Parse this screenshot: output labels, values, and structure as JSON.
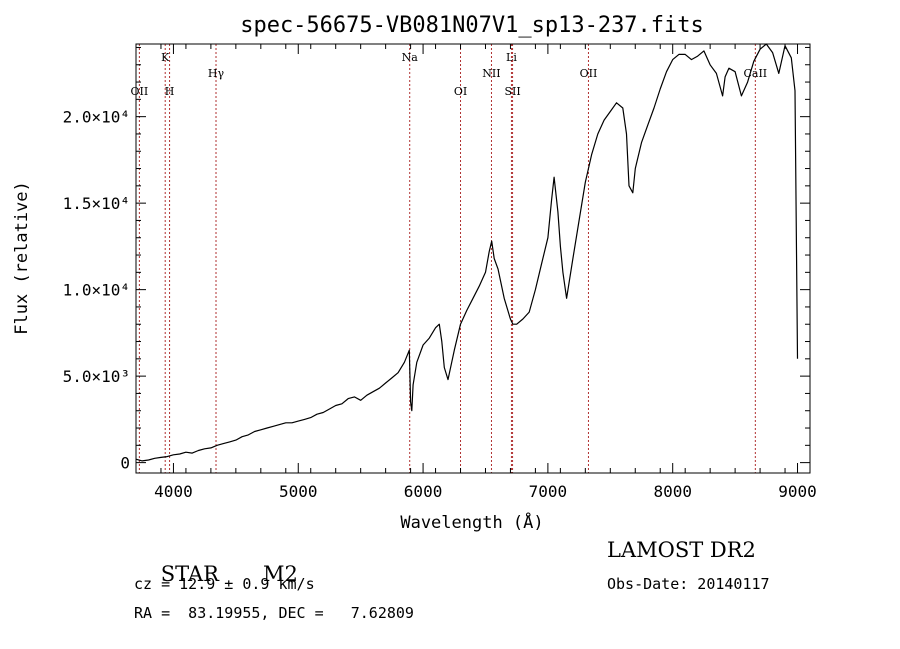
{
  "chart_data": {
    "type": "line",
    "title": "spec-56675-VB081N07V1_sp13-237.fits",
    "xlabel": "Wavelength (Å)",
    "ylabel": "Flux (relative)",
    "xlim": [
      3700,
      9100
    ],
    "ylim": [
      -600,
      24200
    ],
    "x_ticks": [
      {
        "value": 4000,
        "label": "4000"
      },
      {
        "value": 5000,
        "label": "5000"
      },
      {
        "value": 6000,
        "label": "6000"
      },
      {
        "value": 7000,
        "label": "7000"
      },
      {
        "value": 8000,
        "label": "8000"
      },
      {
        "value": 9000,
        "label": "9000"
      }
    ],
    "y_ticks": [
      {
        "value": 0,
        "label": "0"
      },
      {
        "value": 5000,
        "label": "5.0×10³"
      },
      {
        "value": 10000,
        "label": "1.0×10⁴"
      },
      {
        "value": 15000,
        "label": "1.5×10⁴"
      },
      {
        "value": 20000,
        "label": "2.0×10⁴"
      }
    ],
    "series": [
      {
        "color": "#000000",
        "x": [
          3700,
          3750,
          3800,
          3850,
          3900,
          3950,
          4000,
          4050,
          4100,
          4150,
          4200,
          4250,
          4300,
          4350,
          4400,
          4450,
          4500,
          4550,
          4600,
          4650,
          4700,
          4750,
          4800,
          4850,
          4900,
          4950,
          5000,
          5050,
          5100,
          5150,
          5200,
          5250,
          5300,
          5350,
          5400,
          5450,
          5500,
          5550,
          5600,
          5650,
          5700,
          5750,
          5800,
          5850,
          5890,
          5900,
          5910,
          5920,
          5950,
          6000,
          6050,
          6100,
          6130,
          6150,
          6170,
          6200,
          6250,
          6300,
          6350,
          6400,
          6450,
          6500,
          6530,
          6550,
          6570,
          6600,
          6650,
          6700,
          6720,
          6750,
          6800,
          6850,
          6900,
          6950,
          7000,
          7030,
          7050,
          7080,
          7100,
          7120,
          7150,
          7200,
          7250,
          7300,
          7350,
          7400,
          7450,
          7500,
          7550,
          7600,
          7630,
          7650,
          7680,
          7700,
          7750,
          7800,
          7850,
          7900,
          7950,
          8000,
          8050,
          8100,
          8150,
          8200,
          8250,
          8300,
          8350,
          8400,
          8420,
          8450,
          8500,
          8550,
          8600,
          8650,
          8700,
          8750,
          8800,
          8850,
          8900,
          8950,
          8980,
          9000
        ],
        "y": [
          200,
          100,
          150,
          250,
          300,
          350,
          450,
          500,
          600,
          550,
          700,
          800,
          850,
          1000,
          1100,
          1200,
          1300,
          1500,
          1600,
          1800,
          1900,
          2000,
          2100,
          2200,
          2300,
          2300,
          2400,
          2500,
          2600,
          2800,
          2900,
          3100,
          3300,
          3400,
          3700,
          3800,
          3600,
          3900,
          4100,
          4300,
          4600,
          4900,
          5200,
          5800,
          6500,
          3500,
          3000,
          4500,
          5800,
          6800,
          7200,
          7800,
          8000,
          7000,
          5500,
          4800,
          6500,
          8000,
          8800,
          9500,
          10200,
          11000,
          12200,
          12800,
          11800,
          11200,
          9500,
          8300,
          8000,
          8000,
          8300,
          8700,
          10000,
          11500,
          13000,
          15200,
          16500,
          14500,
          12500,
          11000,
          9500,
          11800,
          14000,
          16200,
          17800,
          19000,
          19800,
          20300,
          20800,
          20500,
          19000,
          16000,
          15600,
          17000,
          18500,
          19500,
          20500,
          21600,
          22600,
          23300,
          23600,
          23600,
          23300,
          23500,
          23800,
          23000,
          22500,
          21200,
          22300,
          22800,
          22600,
          21200,
          22000,
          23200,
          23900,
          24200,
          23700,
          22500,
          24100,
          23400,
          21500,
          6000
        ]
      }
    ],
    "line_markers": [
      {
        "label": "OII",
        "x": 3727,
        "row": "low"
      },
      {
        "label": "K",
        "x": 3934,
        "row": "high"
      },
      {
        "label": "H",
        "x": 3969,
        "row": "low"
      },
      {
        "label": "Hγ",
        "x": 4341,
        "row": "mid"
      },
      {
        "label": "Na",
        "x": 5893,
        "row": "high"
      },
      {
        "label": "OI",
        "x": 6300,
        "row": "low"
      },
      {
        "label": "NII",
        "x": 6548,
        "row": "mid"
      },
      {
        "label": "Li",
        "x": 6708,
        "row": "high"
      },
      {
        "label": "SII",
        "x": 6717,
        "row": "low"
      },
      {
        "label": "OII",
        "x": 7325,
        "row": "mid"
      },
      {
        "label": "CaII",
        "x": 8662,
        "row": "mid"
      }
    ],
    "marker_color": "#b03030"
  },
  "info": {
    "object_type": "STAR",
    "subclass": "M2",
    "survey": "LAMOST DR2",
    "cz_line": "cz = 12.9 ± 0.9 km/s",
    "obs_date_line": "Obs-Date: 20140117",
    "coords_line": "RA =  83.19955, DEC =   7.62809"
  }
}
